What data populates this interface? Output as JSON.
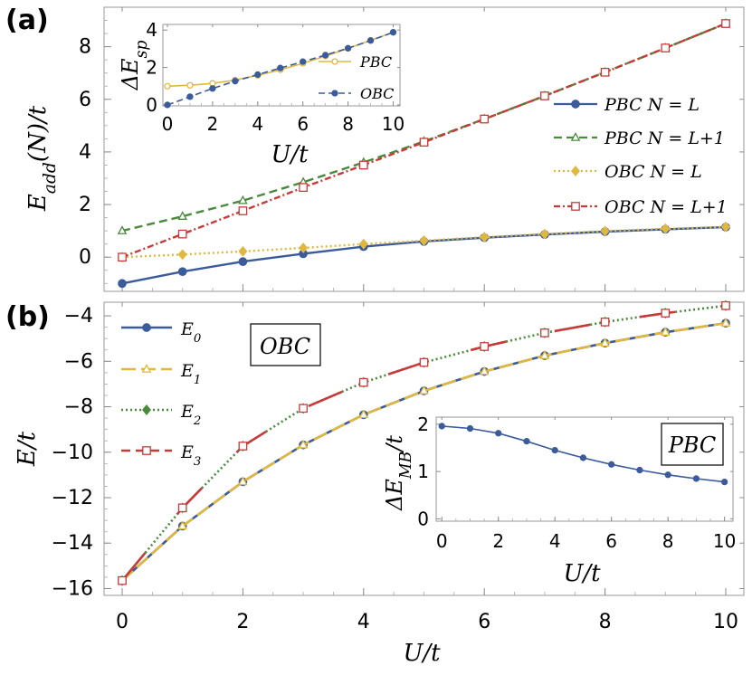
{
  "colors": {
    "blue": "#3b5b9b",
    "green": "#4a8a3c",
    "gold": "#e0b840",
    "red": "#c83a3a"
  },
  "chart_data": [
    {
      "id": "a",
      "type": "line",
      "panel_label": "(a)",
      "xlabel": "U/t",
      "ylabel": "E_add(N)/t",
      "xlim": [
        -0.3,
        10.3
      ],
      "ylim": [
        -1.3,
        9.5
      ],
      "xticks": [
        "0",
        "2",
        "4",
        "6",
        "8",
        "10"
      ],
      "yticks": [
        "0",
        "2",
        "4",
        "6",
        "8"
      ],
      "legend_position": "right",
      "series": [
        {
          "name": "PBC N = L",
          "color": "#3b5b9b",
          "dash": "",
          "marker": "circle-filled",
          "x": [
            0,
            1,
            2,
            3,
            4,
            5,
            6,
            7,
            8,
            9,
            10
          ],
          "values": [
            -1.0,
            -0.55,
            -0.17,
            0.13,
            0.4,
            0.6,
            0.74,
            0.86,
            0.97,
            1.06,
            1.14
          ]
        },
        {
          "name": "PBC N = L+1",
          "color": "#4a8a3c",
          "dash": "9,5",
          "marker": "triangle-open",
          "x": [
            0,
            1,
            2,
            3,
            4,
            5,
            6,
            7,
            8,
            9,
            10
          ],
          "values": [
            1.0,
            1.55,
            2.15,
            2.85,
            3.6,
            4.4,
            5.25,
            6.13,
            7.03,
            7.95,
            8.88
          ]
        },
        {
          "name": "OBC N = L",
          "color": "#e0b840",
          "dash": "2,3",
          "marker": "diamond-filled",
          "x": [
            0,
            1,
            2,
            3,
            4,
            5,
            6,
            7,
            8,
            9,
            10
          ],
          "values": [
            0.0,
            0.1,
            0.22,
            0.35,
            0.5,
            0.63,
            0.76,
            0.88,
            0.99,
            1.08,
            1.15
          ]
        },
        {
          "name": "OBC N = L+1",
          "color": "#c83a3a",
          "dash": "7,3,2,3",
          "marker": "square-open",
          "x": [
            0,
            1,
            2,
            3,
            4,
            5,
            6,
            7,
            8,
            9,
            10
          ],
          "values": [
            0.0,
            0.88,
            1.76,
            2.65,
            3.5,
            4.37,
            5.25,
            6.13,
            7.03,
            7.95,
            8.88
          ]
        }
      ],
      "inset": {
        "xlabel": "U/t",
        "ylabel": "ΔE_sp",
        "xlim": [
          -0.2,
          10.3
        ],
        "ylim": [
          -0.05,
          4.3
        ],
        "xticks": [
          "0",
          "2",
          "4",
          "6",
          "8",
          "10"
        ],
        "yticks": [
          "0",
          "2",
          "4"
        ],
        "series": [
          {
            "name": "PBC",
            "color": "#e0b840",
            "dash": "",
            "marker": "circle-open",
            "x": [
              0,
              1,
              2,
              3,
              4,
              5,
              6,
              7,
              8,
              9,
              10
            ],
            "values": [
              1.0,
              1.05,
              1.15,
              1.33,
              1.58,
              1.88,
              2.22,
              2.61,
              3.02,
              3.45,
              3.88
            ]
          },
          {
            "name": "OBC",
            "color": "#3b5b9b",
            "dash": "7,4",
            "marker": "circle-filled",
            "x": [
              0,
              1,
              2,
              3,
              4,
              5,
              6,
              7,
              8,
              9,
              10
            ],
            "values": [
              0.0,
              0.44,
              0.88,
              1.27,
              1.62,
              1.97,
              2.31,
              2.66,
              3.03,
              3.44,
              3.88
            ]
          }
        ]
      }
    },
    {
      "id": "b",
      "type": "line",
      "panel_label": "(b)",
      "xlabel": "U/t",
      "ylabel": "E/t",
      "xlim": [
        -0.3,
        10.3
      ],
      "ylim": [
        -16.3,
        -3.4
      ],
      "xticks": [
        "0",
        "2",
        "4",
        "6",
        "8",
        "10"
      ],
      "yticks": [
        "-16",
        "-14",
        "-12",
        "-10",
        "-8",
        "-6",
        "-4"
      ],
      "legend_position": "top-left",
      "box_label": "OBC",
      "series": [
        {
          "name": "E0",
          "color": "#3b5b9b",
          "dash": "",
          "marker": "circle-filled",
          "x": [
            0,
            1,
            2,
            3,
            4,
            5,
            6,
            7,
            8,
            9,
            10
          ],
          "values": [
            -15.65,
            -13.25,
            -11.3,
            -9.68,
            -8.35,
            -7.3,
            -6.45,
            -5.75,
            -5.2,
            -4.72,
            -4.32
          ]
        },
        {
          "name": "E1",
          "color": "#e0b840",
          "dash": "16,6",
          "marker": "triangle-open",
          "x": [
            0,
            1,
            2,
            3,
            4,
            5,
            6,
            7,
            8,
            9,
            10
          ],
          "values": [
            -15.65,
            -13.25,
            -11.3,
            -9.68,
            -8.35,
            -7.3,
            -6.45,
            -5.75,
            -5.2,
            -4.72,
            -4.32
          ]
        },
        {
          "name": "E2",
          "color": "#4a8a3c",
          "dash": "2,3",
          "marker": "diamond-filled",
          "x": [
            0,
            1,
            2,
            3,
            4,
            5,
            6,
            7,
            8,
            9,
            10
          ],
          "values": [
            -15.65,
            -12.45,
            -9.73,
            -8.07,
            -6.93,
            -6.05,
            -5.35,
            -4.75,
            -4.27,
            -3.88,
            -3.55
          ]
        },
        {
          "name": "E3",
          "color": "#c83a3a",
          "dash": "40,55",
          "marker": "square-open",
          "x": [
            0,
            1,
            2,
            3,
            4,
            5,
            6,
            7,
            8,
            9,
            10
          ],
          "values": [
            -15.65,
            -12.45,
            -9.73,
            -8.07,
            -6.93,
            -6.05,
            -5.35,
            -4.75,
            -4.27,
            -3.88,
            -3.55
          ]
        }
      ],
      "inset": {
        "xlabel": "U/t",
        "ylabel": "ΔE_MB/t",
        "box_label": "PBC",
        "xlim": [
          -0.2,
          10.3
        ],
        "ylim": [
          -0.05,
          2.15
        ],
        "xticks": [
          "0",
          "2",
          "4",
          "6",
          "8",
          "10"
        ],
        "yticks": [
          "0",
          "1",
          "2"
        ],
        "series": [
          {
            "name": "",
            "color": "#3b5b9b",
            "dash": "",
            "marker": "circle-filled",
            "x": [
              0,
              1,
              2,
              3,
              4,
              5,
              6,
              7,
              8,
              9,
              10
            ],
            "values": [
              1.96,
              1.91,
              1.81,
              1.64,
              1.45,
              1.29,
              1.15,
              1.03,
              0.93,
              0.85,
              0.78
            ]
          }
        ]
      }
    }
  ]
}
